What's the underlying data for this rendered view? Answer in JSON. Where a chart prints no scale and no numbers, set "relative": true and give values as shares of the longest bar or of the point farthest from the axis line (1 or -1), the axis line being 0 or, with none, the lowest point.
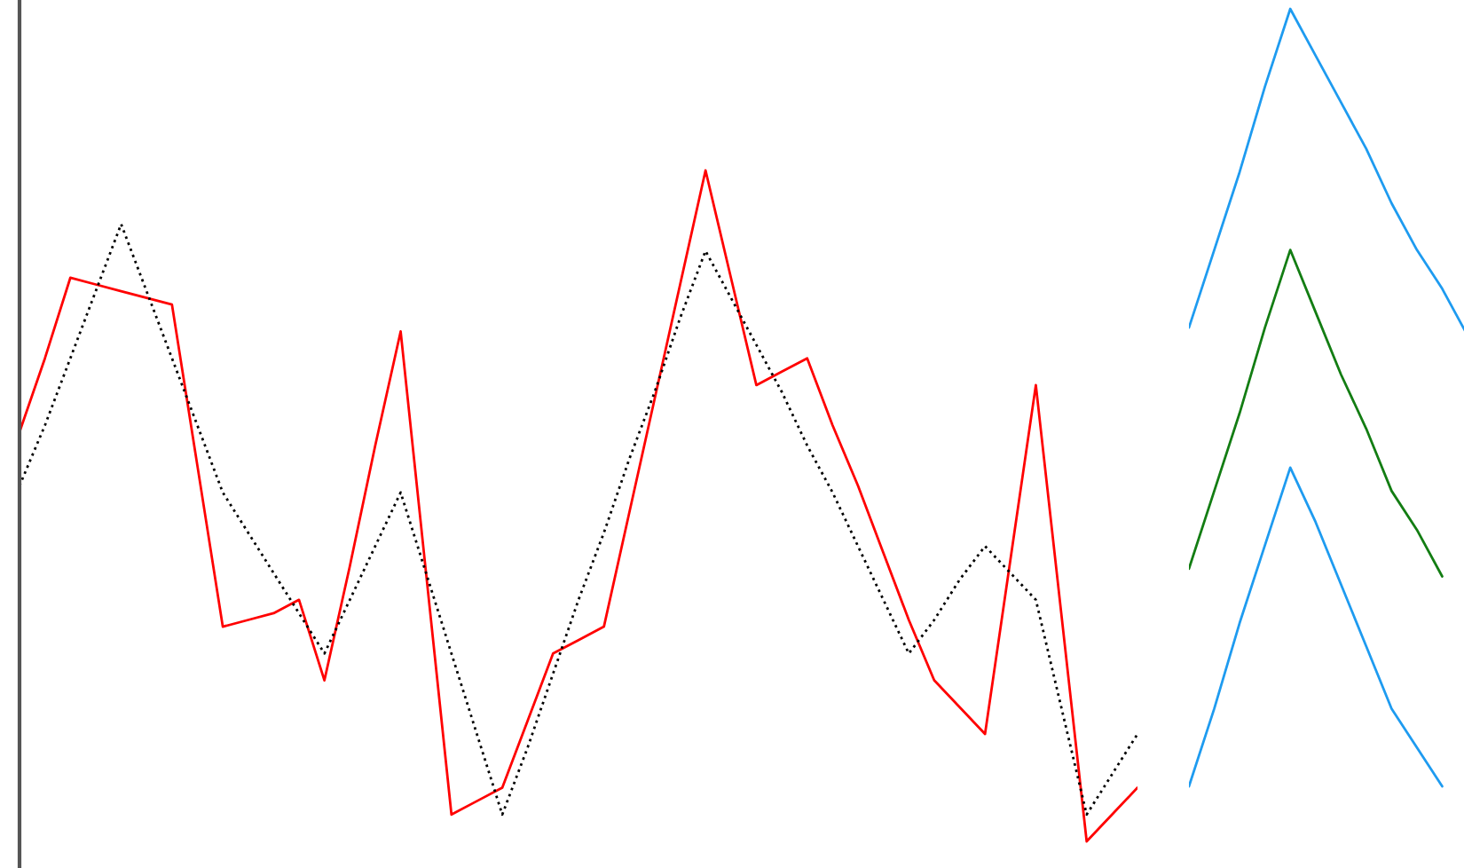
{
  "chart_data": [
    {
      "type": "line",
      "relative": true,
      "marker": "none",
      "categories": [
        null,
        null,
        null,
        null,
        null,
        null,
        null,
        null,
        null,
        null,
        null,
        null,
        null,
        null,
        null,
        null,
        null,
        null,
        null,
        null,
        null,
        null,
        null,
        null,
        null,
        null,
        null,
        null,
        null,
        null,
        null,
        null,
        null,
        null,
        null,
        null,
        null,
        null,
        null,
        null,
        null,
        null,
        null,
        null,
        null
      ],
      "series": [
        {
          "color": "#ff0000",
          "line_style": "solid",
          "values": [
            0.61,
            0.72,
            0.84,
            0.83,
            0.82,
            0.81,
            0.8,
            0.56,
            0.32,
            0.33,
            0.34,
            0.36,
            0.24,
            0.41,
            0.59,
            0.76,
            0.4,
            0.04,
            0.06,
            0.08,
            0.18,
            0.28,
            0.3,
            0.32,
            0.49,
            0.66,
            0.83,
            1,
            0.84,
            0.68,
            0.7,
            0.72,
            0.62,
            0.53,
            0.43,
            0.33,
            0.24,
            0.2,
            0.16,
            0.42,
            0.68,
            0.34,
            0,
            0.04,
            0.08
          ]
        },
        {
          "color": "#000000",
          "line_style": "dotted",
          "values": [
            0.53,
            0.62,
            0.72,
            0.82,
            0.92,
            0.82,
            0.72,
            0.62,
            0.52,
            0.46,
            0.4,
            0.34,
            0.28,
            0.36,
            0.44,
            0.52,
            0.4,
            0.28,
            0.16,
            0.04,
            0.14,
            0.25,
            0.36,
            0.46,
            0.57,
            0.67,
            0.78,
            0.88,
            0.81,
            0.74,
            0.67,
            0.59,
            0.52,
            0.44,
            0.36,
            0.28,
            0.33,
            0.39,
            0.44,
            0.4,
            0.36,
            0.2,
            0.04,
            0.1,
            0.16
          ]
        }
      ]
    },
    {
      "type": "line",
      "relative": true,
      "marker": "none",
      "categories": [
        null,
        null,
        null,
        null,
        null,
        null,
        null,
        null,
        null,
        null,
        null,
        null
      ],
      "series": [
        {
          "color": "#1e9bf0",
          "line_style": "solid",
          "values": [
            0.59,
            0.69,
            0.79,
            0.9,
            1,
            0.94,
            0.88,
            0.82,
            0.75,
            0.69,
            0.64,
            0.58
          ]
        },
        {
          "color": "#137d13",
          "line_style": "solid",
          "values": [
            0.28,
            0.38,
            0.48,
            0.59,
            0.69,
            0.61,
            0.53,
            0.46,
            0.38,
            0.33,
            0.27,
            null
          ]
        },
        {
          "color": "#1e9bf0",
          "line_style": "solid",
          "values": [
            0,
            0.1,
            0.21,
            0.31,
            0.41,
            0.34,
            0.26,
            0.18,
            0.1,
            0.05,
            0,
            null
          ]
        }
      ]
    }
  ]
}
